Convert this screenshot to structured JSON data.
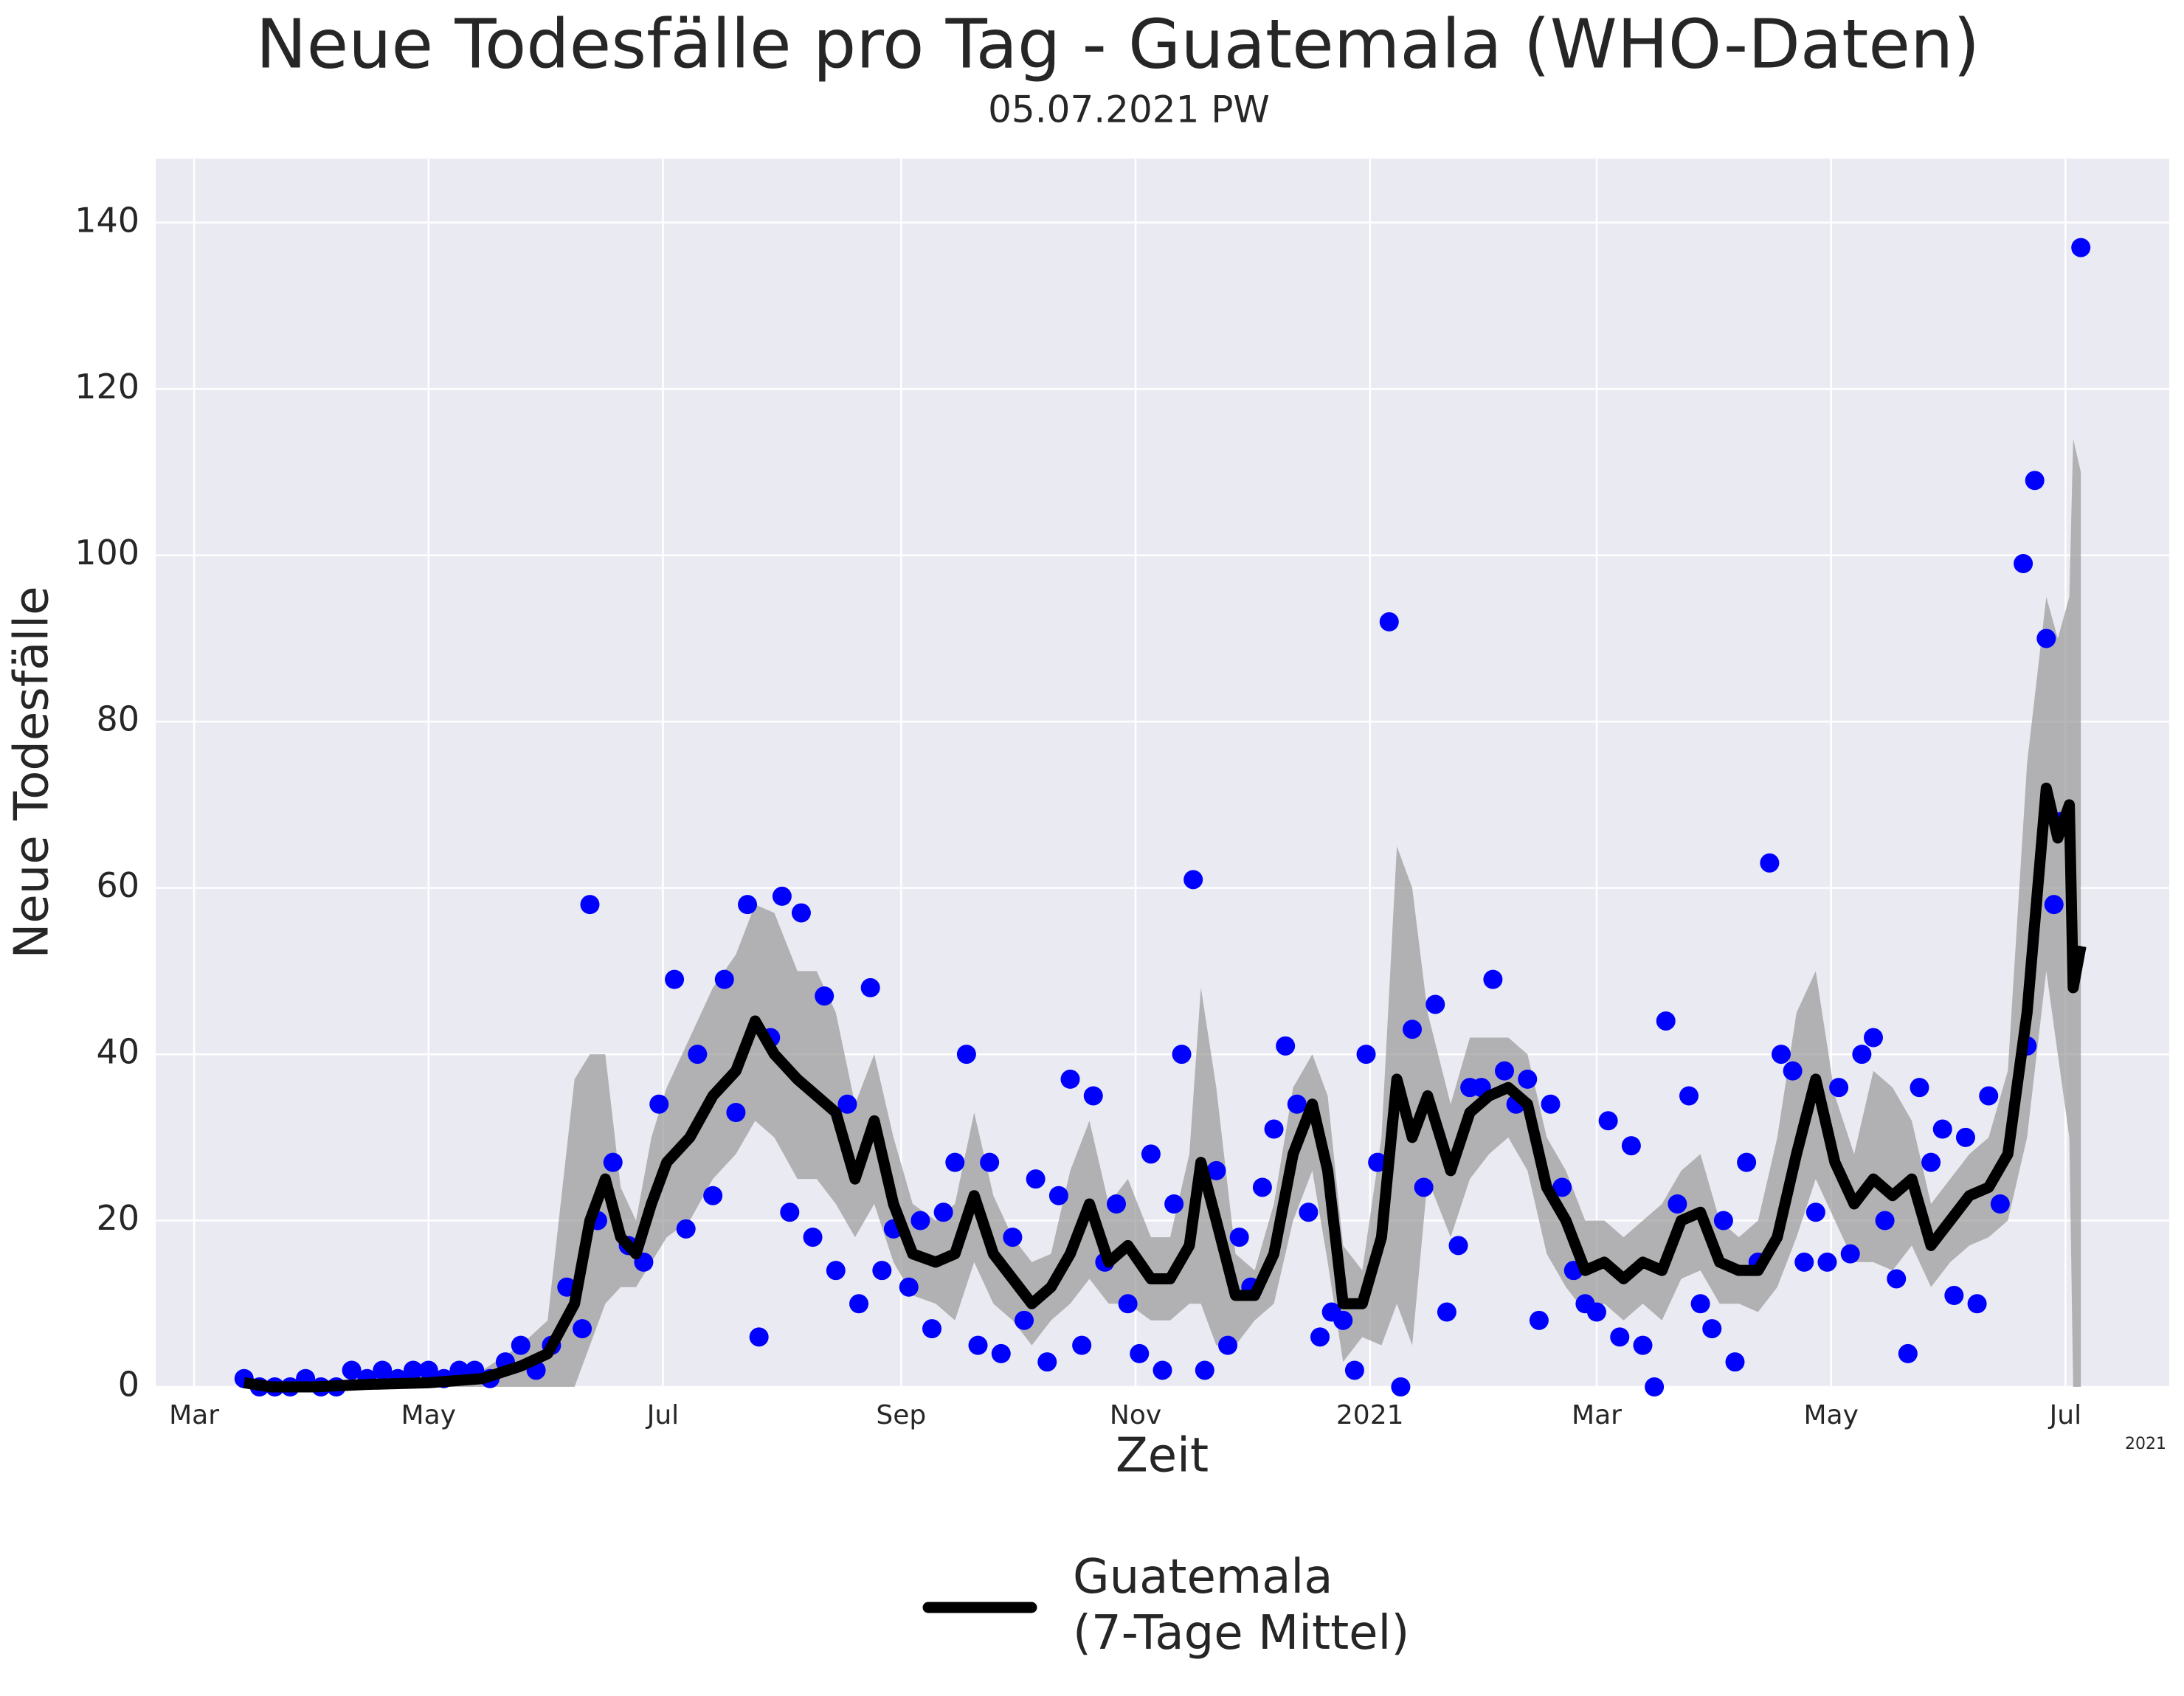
{
  "chart_data": {
    "type": "line",
    "title": "Neue Todesfälle pro Tag - Guatemala (WHO-Daten)",
    "subtitle": "05.07.2021 PW",
    "xlabel": "Zeit",
    "ylabel": "Neue Todesfälle",
    "x_offset_label": "2021",
    "xlim": [
      "2020-02-20",
      "2021-07-28"
    ],
    "ylim": [
      0,
      147.7
    ],
    "xticks": [
      {
        "value": "2020-03-01",
        "label": "Mar"
      },
      {
        "value": "2020-05-01",
        "label": "May"
      },
      {
        "value": "2020-07-01",
        "label": "Jul"
      },
      {
        "value": "2020-09-01",
        "label": "Sep"
      },
      {
        "value": "2020-11-01",
        "label": "Nov"
      },
      {
        "value": "2021-01-01",
        "label": "2021"
      },
      {
        "value": "2021-03-01",
        "label": "Mar"
      },
      {
        "value": "2021-05-01",
        "label": "May"
      },
      {
        "value": "2021-07-01",
        "label": "Jul"
      }
    ],
    "yticks": [
      0,
      20,
      40,
      60,
      80,
      100,
      120,
      140
    ],
    "grid": true,
    "background": "#eaeaf2",
    "legend": "bottom",
    "scatter": {
      "color": "#0000ff",
      "x": [
        "2020-03-14",
        "2020-03-18",
        "2020-03-22",
        "2020-03-26",
        "2020-03-30",
        "2020-04-03",
        "2020-04-07",
        "2020-04-11",
        "2020-04-15",
        "2020-04-19",
        "2020-04-23",
        "2020-04-27",
        "2020-05-01",
        "2020-05-05",
        "2020-05-09",
        "2020-05-13",
        "2020-05-17",
        "2020-05-21",
        "2020-05-25",
        "2020-05-29",
        "2020-06-02",
        "2020-06-06",
        "2020-06-10",
        "2020-06-12",
        "2020-06-14",
        "2020-06-18",
        "2020-06-22",
        "2020-06-26",
        "2020-06-30",
        "2020-07-04",
        "2020-07-07",
        "2020-07-10",
        "2020-07-14",
        "2020-07-17",
        "2020-07-20",
        "2020-07-23",
        "2020-07-26",
        "2020-07-29",
        "2020-08-01",
        "2020-08-03",
        "2020-08-06",
        "2020-08-09",
        "2020-08-12",
        "2020-08-15",
        "2020-08-18",
        "2020-08-21",
        "2020-08-24",
        "2020-08-27",
        "2020-08-30",
        "2020-09-03",
        "2020-09-06",
        "2020-09-09",
        "2020-09-12",
        "2020-09-15",
        "2020-09-18",
        "2020-09-21",
        "2020-09-24",
        "2020-09-27",
        "2020-09-30",
        "2020-10-03",
        "2020-10-06",
        "2020-10-09",
        "2020-10-12",
        "2020-10-15",
        "2020-10-18",
        "2020-10-21",
        "2020-10-24",
        "2020-10-27",
        "2020-10-30",
        "2020-11-02",
        "2020-11-05",
        "2020-11-08",
        "2020-11-11",
        "2020-11-13",
        "2020-11-16",
        "2020-11-19",
        "2020-11-22",
        "2020-11-25",
        "2020-11-28",
        "2020-12-01",
        "2020-12-04",
        "2020-12-07",
        "2020-12-10",
        "2020-12-13",
        "2020-12-16",
        "2020-12-19",
        "2020-12-22",
        "2020-12-25",
        "2020-12-28",
        "2020-12-31",
        "2021-01-03",
        "2021-01-06",
        "2021-01-09",
        "2021-01-12",
        "2021-01-15",
        "2021-01-18",
        "2021-01-21",
        "2021-01-24",
        "2021-01-27",
        "2021-01-30",
        "2021-02-02",
        "2021-02-05",
        "2021-02-08",
        "2021-02-11",
        "2021-02-14",
        "2021-02-17",
        "2021-02-20",
        "2021-02-23",
        "2021-02-26",
        "2021-03-01",
        "2021-03-04",
        "2021-03-07",
        "2021-03-10",
        "2021-03-13",
        "2021-03-16",
        "2021-03-19",
        "2021-03-22",
        "2021-03-25",
        "2021-03-28",
        "2021-03-31",
        "2021-04-03",
        "2021-04-06",
        "2021-04-09",
        "2021-04-12",
        "2021-04-15",
        "2021-04-18",
        "2021-04-21",
        "2021-04-24",
        "2021-04-27",
        "2021-04-30",
        "2021-05-03",
        "2021-05-06",
        "2021-05-09",
        "2021-05-12",
        "2021-05-15",
        "2021-05-18",
        "2021-05-21",
        "2021-05-24",
        "2021-05-27",
        "2021-05-30",
        "2021-06-02",
        "2021-06-05",
        "2021-06-08",
        "2021-06-11",
        "2021-06-14",
        "2021-06-20",
        "2021-06-21",
        "2021-06-23",
        "2021-06-26",
        "2021-06-28",
        "2021-06-30",
        "2021-07-05"
      ],
      "values": [
        1,
        0,
        0,
        0,
        1,
        0,
        0,
        2,
        1,
        2,
        1,
        2,
        2,
        1,
        2,
        2,
        1,
        3,
        5,
        2,
        5,
        12,
        7,
        58,
        20,
        27,
        17,
        15,
        34,
        49,
        19,
        40,
        23,
        49,
        33,
        58,
        6,
        42,
        59,
        21,
        57,
        18,
        47,
        14,
        34,
        10,
        48,
        14,
        19,
        12,
        20,
        7,
        21,
        27,
        40,
        5,
        27,
        4,
        18,
        8,
        25,
        3,
        23,
        37,
        5,
        35,
        15,
        22,
        10,
        4,
        28,
        2,
        22,
        40,
        61,
        2,
        26,
        5,
        18,
        12,
        24,
        31,
        41,
        34,
        21,
        6,
        9,
        8,
        2,
        40,
        27,
        92,
        0,
        43,
        24,
        46,
        9,
        17,
        36,
        36,
        49,
        38,
        34,
        37,
        8,
        34,
        24,
        14,
        10,
        9,
        32,
        6,
        29,
        5,
        0,
        44,
        22,
        35,
        10,
        7,
        20,
        3,
        27,
        15,
        63,
        40,
        38,
        15,
        21,
        15,
        36,
        16,
        40,
        42,
        20,
        13,
        4,
        36,
        27,
        31,
        11,
        30,
        10,
        35,
        22,
        99,
        41,
        109,
        90,
        58,
        68,
        137
      ]
    },
    "series": [
      {
        "name": "Guatemala\n(7-Tage Mittel)",
        "color": "#000000",
        "band_color": "#999999",
        "x": [
          "2020-03-14",
          "2020-03-21",
          "2020-04-01",
          "2020-04-15",
          "2020-05-01",
          "2020-05-15",
          "2020-05-25",
          "2020-06-01",
          "2020-06-08",
          "2020-06-12",
          "2020-06-16",
          "2020-06-20",
          "2020-06-24",
          "2020-06-28",
          "2020-07-02",
          "2020-07-08",
          "2020-07-14",
          "2020-07-20",
          "2020-07-25",
          "2020-07-30",
          "2020-08-05",
          "2020-08-10",
          "2020-08-15",
          "2020-08-20",
          "2020-08-25",
          "2020-08-30",
          "2020-09-04",
          "2020-09-10",
          "2020-09-15",
          "2020-09-20",
          "2020-09-25",
          "2020-09-30",
          "2020-10-05",
          "2020-10-10",
          "2020-10-15",
          "2020-10-20",
          "2020-10-25",
          "2020-10-30",
          "2020-11-05",
          "2020-11-10",
          "2020-11-15",
          "2020-11-18",
          "2020-11-22",
          "2020-11-27",
          "2020-12-02",
          "2020-12-07",
          "2020-12-12",
          "2020-12-17",
          "2020-12-21",
          "2020-12-25",
          "2020-12-30",
          "2021-01-04",
          "2021-01-08",
          "2021-01-12",
          "2021-01-16",
          "2021-01-22",
          "2021-01-27",
          "2021-02-01",
          "2021-02-06",
          "2021-02-11",
          "2021-02-16",
          "2021-02-21",
          "2021-02-26",
          "2021-03-03",
          "2021-03-08",
          "2021-03-13",
          "2021-03-18",
          "2021-03-23",
          "2021-03-28",
          "2021-04-02",
          "2021-04-07",
          "2021-04-12",
          "2021-04-17",
          "2021-04-22",
          "2021-04-27",
          "2021-05-02",
          "2021-05-07",
          "2021-05-12",
          "2021-05-17",
          "2021-05-22",
          "2021-05-27",
          "2021-06-01",
          "2021-06-06",
          "2021-06-11",
          "2021-06-16",
          "2021-06-21",
          "2021-06-26",
          "2021-06-29",
          "2021-07-02",
          "2021-07-03",
          "2021-07-05"
        ],
        "values": [
          0.5,
          0,
          0,
          0.3,
          0.5,
          1,
          2.5,
          4,
          10,
          20,
          25,
          18,
          16,
          22,
          27,
          30,
          35,
          38,
          44,
          40,
          37,
          35,
          33,
          25,
          32,
          22,
          16,
          15,
          16,
          23,
          16,
          13,
          10,
          12,
          16,
          22,
          15,
          17,
          13,
          13,
          17,
          27,
          20,
          11,
          11,
          16,
          28,
          34,
          26,
          10,
          10,
          18,
          37,
          30,
          35,
          26,
          33,
          35,
          36,
          34,
          24,
          20,
          14,
          15,
          13,
          15,
          14,
          20,
          21,
          15,
          14,
          14,
          18,
          28,
          37,
          27,
          22,
          25,
          23,
          25,
          17,
          20,
          23,
          24,
          28,
          45,
          72,
          66,
          70,
          48,
          53
        ],
        "lower": [
          0,
          0,
          0,
          0,
          0,
          0,
          0,
          0,
          0,
          5,
          10,
          12,
          12,
          15,
          18,
          20,
          25,
          28,
          32,
          30,
          25,
          25,
          22,
          18,
          22,
          15,
          11,
          10,
          8,
          15,
          10,
          8,
          5,
          8,
          10,
          13,
          10,
          10,
          8,
          8,
          10,
          10,
          5,
          5,
          8,
          10,
          20,
          26,
          15,
          3,
          6,
          5,
          10,
          5,
          25,
          18,
          25,
          28,
          30,
          26,
          16,
          12,
          9,
          10,
          8,
          10,
          8,
          13,
          14,
          10,
          10,
          9,
          12,
          18,
          25,
          20,
          15,
          15,
          14,
          17,
          12,
          15,
          17,
          18,
          20,
          30,
          50,
          40,
          30,
          0,
          0
        ],
        "upper": [
          1,
          0.5,
          0.5,
          1,
          1.5,
          2,
          5,
          8,
          37,
          40,
          40,
          24,
          20,
          30,
          36,
          42,
          48,
          52,
          58,
          57,
          50,
          50,
          45,
          34,
          40,
          30,
          22,
          20,
          22,
          33,
          23,
          18,
          15,
          16,
          26,
          32,
          22,
          25,
          18,
          18,
          28,
          48,
          36,
          16,
          14,
          22,
          36,
          40,
          35,
          17,
          14,
          30,
          65,
          60,
          45,
          34,
          42,
          42,
          42,
          40,
          30,
          26,
          20,
          20,
          18,
          20,
          22,
          26,
          28,
          20,
          18,
          20,
          30,
          45,
          50,
          35,
          28,
          38,
          36,
          32,
          22,
          25,
          28,
          30,
          38,
          75,
          95,
          90,
          95,
          114,
          110
        ]
      }
    ]
  }
}
